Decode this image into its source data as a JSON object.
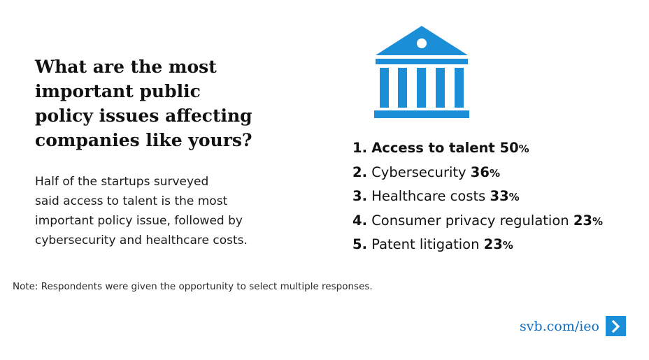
{
  "title_lines": [
    "What are the most",
    "important public",
    "policy issues affecting",
    "companies like yours?"
  ],
  "description_lines": [
    "Half of the startups surveyed",
    "said access to talent is the most",
    "important policy issue, followed by",
    "cybersecurity and healthcare costs."
  ],
  "icon": {
    "name": "bank-building-icon",
    "color": "#1a8fd8"
  },
  "ranking": [
    {
      "number": "1.",
      "label": "Access to talent ",
      "value": "50",
      "unit": "%"
    },
    {
      "number": "2.",
      "label": "Cybersecurity ",
      "value": "36",
      "unit": "%"
    },
    {
      "number": "3.",
      "label": "Healthcare costs",
      "value": "33",
      "unit": "%"
    },
    {
      "number": "4.",
      "label": "Consumer privacy regulation",
      "value": "23",
      "unit": "%"
    },
    {
      "number": "5.",
      "label": "Patent litigation",
      "value": "23",
      "unit": "%"
    }
  ],
  "note": "Note: Respondents were given the opportunity to select multiple responses.",
  "footer": {
    "link_text": "svb.com/ieo",
    "arrow_icon": "chevron-right-icon",
    "link_color": "#0f6cbf",
    "arrow_bg_color": "#1a8fd8"
  }
}
